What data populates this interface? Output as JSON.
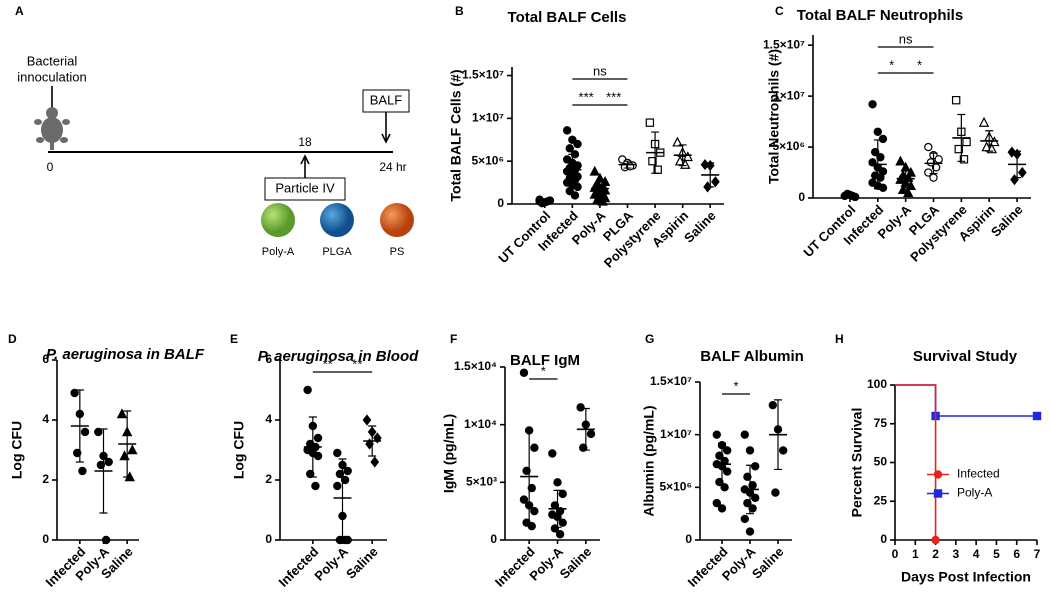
{
  "diagram": {
    "panel": "A",
    "inoculation": [
      "Bacterial",
      "innoculation"
    ],
    "time_start": "0",
    "time_mid": "18",
    "time_end": "24 hr",
    "balf": "BALF",
    "particle": "Particle IV",
    "particles": [
      "Poly-A",
      "PLGA",
      "PS"
    ]
  },
  "chart_data": [
    {
      "type": "dotplot",
      "panel": "B",
      "title": "Total BALF Cells",
      "ylabel": "Total BALF Cells (#)",
      "categories": [
        "UT Control",
        "Infected",
        "Poly-A",
        "PLGA",
        "Polystyrene",
        "Aspirin",
        "Saline"
      ],
      "markers": [
        "circle",
        "circle",
        "triangle",
        "circle-open",
        "square-open",
        "triangle-open",
        "diamond"
      ],
      "points": [
        [
          300000,
          200000,
          400000,
          100000,
          300000,
          500000
        ],
        [
          8600000,
          7500000,
          7000000,
          6500000,
          5800000,
          5200000,
          4800000,
          4500000,
          4200000,
          4000000,
          3800000,
          3500000,
          3200000,
          3000000,
          2800000,
          2500000,
          2200000,
          2000000,
          1500000,
          1000000
        ],
        [
          3800000,
          3000000,
          2600000,
          2300000,
          2000000,
          1900000,
          1800000,
          1600000,
          1500000,
          1300000,
          1100000,
          900000,
          700000,
          500000,
          300000
        ],
        [
          5200000,
          4800000,
          4500000,
          4300000,
          4400000
        ],
        [
          9500000,
          7000000,
          6000000,
          5000000,
          4000000
        ],
        [
          7200000,
          6000000,
          5500000,
          5000000,
          4600000
        ],
        [
          4600000,
          4500000,
          2600000,
          2000000
        ]
      ],
      "mean": [
        300000,
        4000000,
        1800000,
        4600000,
        6000000,
        5700000,
        3400000
      ],
      "sd": [
        150000,
        1800000,
        1000000,
        400000,
        2400000,
        1200000,
        1400000
      ],
      "comparisons": [
        {
          "label": "ns",
          "groups": [
            "Infected",
            "PLGA"
          ]
        },
        {
          "label": "***",
          "groups": [
            "Infected",
            "Poly-A"
          ]
        },
        {
          "label": "***",
          "groups": [
            "Poly-A",
            "PLGA"
          ]
        }
      ],
      "ylim": [
        0,
        16000000
      ],
      "yticks": [
        0,
        {
          "value": 5000000,
          "label": "5×10⁶"
        },
        {
          "value": 10000000,
          "label": "1×10⁷"
        },
        {
          "value": 15000000,
          "label": "1.5×10⁷"
        }
      ]
    },
    {
      "type": "dotplot",
      "panel": "C",
      "title": "Total BALF Neutrophils",
      "ylabel": "Total Neutrophils (#)",
      "categories": [
        "UT Control",
        "Infected",
        "Poly-A",
        "PLGA",
        "Polystyrene",
        "Aspirin",
        "Saline"
      ],
      "markers": [
        "circle",
        "circle",
        "triangle",
        "circle-open",
        "square-open",
        "triangle-open",
        "diamond"
      ],
      "points": [
        [
          200000,
          300000,
          100000,
          400000,
          200000
        ],
        [
          9200000,
          6500000,
          5800000,
          4500000,
          4000000,
          3500000,
          3000000,
          2600000,
          2200000,
          2000000,
          1500000,
          1200000,
          1000000
        ],
        [
          3600000,
          3000000,
          2500000,
          2200000,
          2000000,
          1800000,
          1500000,
          1200000,
          800000,
          500000
        ],
        [
          5000000,
          4200000,
          3800000,
          3500000,
          3000000,
          2500000,
          2000000
        ],
        [
          9600000,
          6500000,
          5500000,
          4800000,
          3800000
        ],
        [
          7400000,
          6000000,
          5500000,
          5000000,
          4800000
        ],
        [
          4500000,
          4300000,
          2500000,
          1800000
        ]
      ],
      "mean": [
        250000,
        3300000,
        1900000,
        3400000,
        5900000,
        5600000,
        3300000
      ],
      "sd": [
        100000,
        2400000,
        900000,
        1000000,
        2300000,
        1000000,
        1300000
      ],
      "comparisons": [
        {
          "label": "ns",
          "groups": [
            "Infected",
            "PLGA"
          ]
        },
        {
          "label": "*",
          "groups": [
            "Infected",
            "Poly-A"
          ]
        },
        {
          "label": "*",
          "groups": [
            "Poly-A",
            "PLGA"
          ]
        }
      ],
      "ylim": [
        0,
        16000000
      ],
      "yticks": [
        0,
        {
          "value": 5000000,
          "label": "5×10⁶"
        },
        {
          "value": 10000000,
          "label": "1×10⁷"
        },
        {
          "value": 15000000,
          "label": "1.5×10⁷"
        }
      ]
    },
    {
      "type": "dotplot",
      "panel": "D",
      "title": "P. aeruginosa in BALF",
      "ylabel": "Log CFU",
      "categories": [
        "Infected",
        "Poly-A",
        "Saline"
      ],
      "markers": [
        "circle",
        "circle",
        "triangle"
      ],
      "points": [
        [
          4.9,
          4.2,
          3.6,
          2.9,
          2.3
        ],
        [
          3.6,
          2.8,
          2.6,
          2.5,
          0
        ],
        [
          4.2,
          3.6,
          3.0,
          2.8,
          2.1
        ]
      ],
      "mean": [
        3.8,
        2.3,
        3.2
      ],
      "sd": [
        1.2,
        1.4,
        1.1
      ],
      "comparisons": [],
      "ylim": [
        0,
        6
      ],
      "yticks": [
        0,
        2,
        4,
        6
      ]
    },
    {
      "type": "dotplot",
      "panel": "E",
      "title": "P. aeruginosa in Blood",
      "ylabel": "Log CFU",
      "categories": [
        "Infected",
        "Poly-A",
        "Saline"
      ],
      "markers": [
        "circle",
        "circle",
        "diamond"
      ],
      "points": [
        [
          5.0,
          3.8,
          3.4,
          3.2,
          3.1,
          3.0,
          2.9,
          2.8,
          2.2,
          1.8
        ],
        [
          2.9,
          2.5,
          2.3,
          2.2,
          2.0,
          1.8,
          0.8,
          0,
          0,
          0
        ],
        [
          4.0,
          3.6,
          3.4,
          3.2,
          2.6
        ]
      ],
      "mean": [
        3.1,
        1.4,
        3.3
      ],
      "sd": [
        1.0,
        1.3,
        0.5
      ],
      "comparisons": [
        {
          "label": "**",
          "groups": [
            "Infected",
            "Poly-A"
          ]
        },
        {
          "label": "**",
          "groups": [
            "Poly-A",
            "Saline"
          ]
        }
      ],
      "ylim": [
        0,
        6
      ],
      "yticks": [
        0,
        2,
        4,
        6
      ]
    },
    {
      "type": "dotplot",
      "panel": "F",
      "title": "BALF IgM",
      "ylabel": "IgM (pg/mL)",
      "categories": [
        "Infected",
        "Poly-A",
        "Saline"
      ],
      "markers": [
        "circle",
        "circle",
        "circle"
      ],
      "points": [
        [
          14500,
          9500,
          8000,
          6000,
          4500,
          3500,
          3000,
          2500,
          1500,
          1200
        ],
        [
          7500,
          5000,
          4000,
          3000,
          2500,
          2200,
          2000,
          1500,
          1000,
          500
        ],
        [
          11500,
          10000,
          9200,
          8000
        ]
      ],
      "mean": [
        5500,
        2700,
        9600
      ],
      "sd": [
        4000,
        1600,
        1800
      ],
      "comparisons": [
        {
          "label": "*",
          "groups": [
            "Infected",
            "Poly-A"
          ]
        }
      ],
      "ylim": [
        0,
        15000
      ],
      "yticks": [
        0,
        {
          "value": 5000,
          "label": "5×10³"
        },
        {
          "value": 10000,
          "label": "1×10⁴"
        },
        {
          "value": 15000,
          "label": "1.5×10⁴"
        }
      ]
    },
    {
      "type": "dotplot",
      "panel": "G",
      "title": "BALF Albumin",
      "ylabel": "Albumin (pg/mL)",
      "categories": [
        "Infected",
        "Poly-A",
        "Saline"
      ],
      "markers": [
        "circle",
        "circle",
        "circle"
      ],
      "points": [
        [
          10000000,
          9000000,
          8500000,
          8000000,
          7500000,
          7200000,
          7000000,
          6500000,
          5500000,
          5000000,
          3500000,
          3000000
        ],
        [
          10000000,
          8500000,
          7000000,
          6000000,
          5200000,
          4800000,
          4500000,
          4000000,
          3500000,
          3000000,
          2000000,
          800000
        ],
        [
          12800000,
          10500000,
          8500000,
          4500000
        ]
      ],
      "mean": [
        7200000,
        4800000,
        10000000
      ],
      "sd": [
        2000000,
        2300000,
        3300000
      ],
      "comparisons": [
        {
          "label": "*",
          "groups": [
            "Infected",
            "Poly-A"
          ]
        }
      ],
      "ylim": [
        0,
        15000000
      ],
      "yticks": [
        0,
        {
          "value": 5000000,
          "label": "5×10⁶"
        },
        {
          "value": 10000000,
          "label": "1×10⁷"
        },
        {
          "value": 15000000,
          "label": "1.5×10⁷"
        }
      ]
    },
    {
      "type": "line",
      "panel": "H",
      "title": "Survival Study",
      "ylabel": "Percent Survival",
      "xlabel": "Days Post Infection",
      "step": true,
      "legend": "right",
      "series": [
        {
          "name": "Infected",
          "color": "#e8211c",
          "marker": "circle",
          "x": [
            0,
            2
          ],
          "values": [
            100,
            0
          ]
        },
        {
          "name": "Poly-A",
          "color": "#1d28e0",
          "marker": "square",
          "x": [
            0,
            2,
            7
          ],
          "values": [
            100,
            80,
            80
          ]
        }
      ],
      "xlim": [
        0,
        7
      ],
      "xticks": [
        0,
        1,
        2,
        3,
        4,
        5,
        6,
        7
      ],
      "ylim": [
        0,
        100
      ],
      "yticks": [
        0,
        25,
        50,
        75,
        100
      ]
    }
  ]
}
